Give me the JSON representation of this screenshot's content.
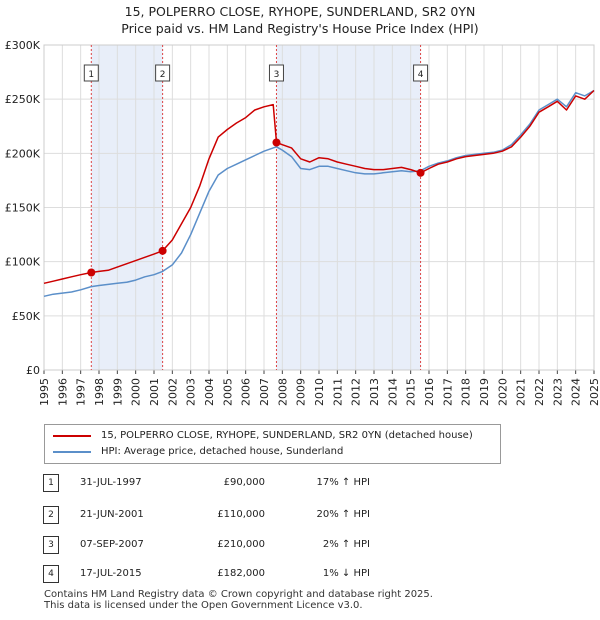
{
  "chart_data": {
    "type": "line",
    "title": "15, POLPERRO CLOSE, RYHOPE, SUNDERLAND, SR2 0YN",
    "subtitle": "Price paid vs. HM Land Registry's House Price Index (HPI)",
    "xlim": [
      1995,
      2025
    ],
    "ylim": [
      0,
      300000
    ],
    "y_ticks": [
      {
        "value": 0,
        "label": "£0"
      },
      {
        "value": 50000,
        "label": "£50K"
      },
      {
        "value": 100000,
        "label": "£100K"
      },
      {
        "value": 150000,
        "label": "£150K"
      },
      {
        "value": 200000,
        "label": "£200K"
      },
      {
        "value": 250000,
        "label": "£250K"
      },
      {
        "value": 300000,
        "label": "£300K"
      }
    ],
    "x_ticks": [
      "1995",
      "1996",
      "1997",
      "1998",
      "1999",
      "2000",
      "2001",
      "2002",
      "2003",
      "2004",
      "2005",
      "2006",
      "2007",
      "2008",
      "2009",
      "2010",
      "2011",
      "2012",
      "2013",
      "2014",
      "2015",
      "2016",
      "2017",
      "2018",
      "2019",
      "2020",
      "2021",
      "2022",
      "2023",
      "2024",
      "2025"
    ],
    "grid": true,
    "shaded_periods": [
      [
        1997.58,
        2001.47
      ],
      [
        2007.68,
        2015.54
      ]
    ],
    "series": [
      {
        "name": "15, POLPERRO CLOSE, RYHOPE, SUNDERLAND, SR2 0YN (detached house)",
        "color": "#cc0000",
        "points": [
          [
            1995.0,
            80000
          ],
          [
            1995.5,
            82000
          ],
          [
            1996.0,
            84000
          ],
          [
            1996.5,
            86000
          ],
          [
            1997.0,
            88000
          ],
          [
            1997.58,
            90000
          ],
          [
            1998.0,
            91000
          ],
          [
            1998.5,
            92000
          ],
          [
            1999.0,
            95000
          ],
          [
            1999.5,
            98000
          ],
          [
            2000.0,
            101000
          ],
          [
            2000.5,
            104000
          ],
          [
            2001.0,
            107000
          ],
          [
            2001.47,
            110000
          ],
          [
            2002.0,
            120000
          ],
          [
            2002.5,
            135000
          ],
          [
            2003.0,
            150000
          ],
          [
            2003.5,
            170000
          ],
          [
            2004.0,
            195000
          ],
          [
            2004.5,
            215000
          ],
          [
            2005.0,
            222000
          ],
          [
            2005.5,
            228000
          ],
          [
            2006.0,
            233000
          ],
          [
            2006.5,
            240000
          ],
          [
            2007.0,
            243000
          ],
          [
            2007.5,
            245000
          ],
          [
            2007.68,
            210000
          ],
          [
            2008.0,
            208000
          ],
          [
            2008.5,
            205000
          ],
          [
            2009.0,
            195000
          ],
          [
            2009.5,
            192000
          ],
          [
            2010.0,
            196000
          ],
          [
            2010.5,
            195000
          ],
          [
            2011.0,
            192000
          ],
          [
            2011.5,
            190000
          ],
          [
            2012.0,
            188000
          ],
          [
            2012.5,
            186000
          ],
          [
            2013.0,
            185000
          ],
          [
            2013.5,
            185000
          ],
          [
            2014.0,
            186000
          ],
          [
            2014.5,
            187000
          ],
          [
            2015.0,
            185000
          ],
          [
            2015.54,
            182000
          ],
          [
            2016.0,
            186000
          ],
          [
            2016.5,
            190000
          ],
          [
            2017.0,
            192000
          ],
          [
            2017.5,
            195000
          ],
          [
            2018.0,
            197000
          ],
          [
            2018.5,
            198000
          ],
          [
            2019.0,
            199000
          ],
          [
            2019.5,
            200000
          ],
          [
            2020.0,
            202000
          ],
          [
            2020.5,
            206000
          ],
          [
            2021.0,
            215000
          ],
          [
            2021.5,
            225000
          ],
          [
            2022.0,
            238000
          ],
          [
            2022.5,
            243000
          ],
          [
            2023.0,
            248000
          ],
          [
            2023.5,
            240000
          ],
          [
            2024.0,
            253000
          ],
          [
            2024.5,
            250000
          ],
          [
            2025.0,
            258000
          ]
        ]
      },
      {
        "name": "HPI: Average price, detached house, Sunderland",
        "color": "#5b8fc9",
        "points": [
          [
            1995.0,
            68000
          ],
          [
            1995.5,
            70000
          ],
          [
            1996.0,
            71000
          ],
          [
            1996.5,
            72000
          ],
          [
            1997.0,
            74000
          ],
          [
            1997.58,
            77000
          ],
          [
            1998.0,
            78000
          ],
          [
            1998.5,
            79000
          ],
          [
            1999.0,
            80000
          ],
          [
            1999.5,
            81000
          ],
          [
            2000.0,
            83000
          ],
          [
            2000.5,
            86000
          ],
          [
            2001.0,
            88000
          ],
          [
            2001.47,
            91000
          ],
          [
            2002.0,
            97000
          ],
          [
            2002.5,
            108000
          ],
          [
            2003.0,
            125000
          ],
          [
            2003.5,
            145000
          ],
          [
            2004.0,
            165000
          ],
          [
            2004.5,
            180000
          ],
          [
            2005.0,
            186000
          ],
          [
            2005.5,
            190000
          ],
          [
            2006.0,
            194000
          ],
          [
            2006.5,
            198000
          ],
          [
            2007.0,
            202000
          ],
          [
            2007.5,
            205000
          ],
          [
            2007.68,
            206000
          ],
          [
            2008.0,
            203000
          ],
          [
            2008.5,
            197000
          ],
          [
            2009.0,
            186000
          ],
          [
            2009.5,
            185000
          ],
          [
            2010.0,
            188000
          ],
          [
            2010.5,
            188000
          ],
          [
            2011.0,
            186000
          ],
          [
            2011.5,
            184000
          ],
          [
            2012.0,
            182000
          ],
          [
            2012.5,
            181000
          ],
          [
            2013.0,
            181000
          ],
          [
            2013.5,
            182000
          ],
          [
            2014.0,
            183000
          ],
          [
            2014.5,
            184000
          ],
          [
            2015.0,
            183000
          ],
          [
            2015.54,
            184000
          ],
          [
            2016.0,
            188000
          ],
          [
            2016.5,
            191000
          ],
          [
            2017.0,
            193000
          ],
          [
            2017.5,
            196000
          ],
          [
            2018.0,
            198000
          ],
          [
            2018.5,
            199000
          ],
          [
            2019.0,
            200000
          ],
          [
            2019.5,
            201000
          ],
          [
            2020.0,
            203000
          ],
          [
            2020.5,
            208000
          ],
          [
            2021.0,
            217000
          ],
          [
            2021.5,
            227000
          ],
          [
            2022.0,
            240000
          ],
          [
            2022.5,
            245000
          ],
          [
            2023.0,
            250000
          ],
          [
            2023.5,
            243000
          ],
          [
            2024.0,
            256000
          ],
          [
            2024.5,
            253000
          ],
          [
            2025.0,
            258000
          ]
        ]
      }
    ],
    "sales": [
      {
        "num": "1",
        "x": 1997.58,
        "value": 90000,
        "date": "31-JUL-1997",
        "price": "£90,000",
        "hpi": "17% ↑ HPI"
      },
      {
        "num": "2",
        "x": 2001.47,
        "value": 110000,
        "date": "21-JUN-2001",
        "price": "£110,000",
        "hpi": "20% ↑ HPI"
      },
      {
        "num": "3",
        "x": 2007.68,
        "value": 210000,
        "date": "07-SEP-2007",
        "price": "£210,000",
        "hpi": "2% ↑ HPI"
      },
      {
        "num": "4",
        "x": 2015.54,
        "value": 182000,
        "date": "17-JUL-2015",
        "price": "£182,000",
        "hpi": "1% ↓ HPI"
      }
    ]
  },
  "legend": {
    "property_label": "15, POLPERRO CLOSE, RYHOPE, SUNDERLAND, SR2 0YN (detached house)",
    "hpi_label": "HPI: Average price, detached house, Sunderland"
  },
  "footer": {
    "line1": "Contains HM Land Registry data © Crown copyright and database right 2025.",
    "line2": "This data is licensed under the Open Government Licence v3.0."
  }
}
